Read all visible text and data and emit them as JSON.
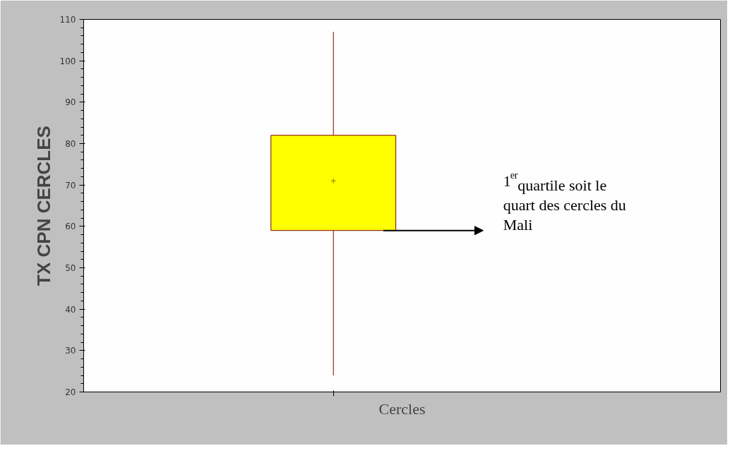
{
  "chart_data": {
    "type": "box",
    "categories": [
      null
    ],
    "xlabel": "Cercles",
    "ylabel": "TX CPN CERCLES",
    "series": [
      {
        "color": "#ffff00",
        "boxes": [
          {
            "low": 24,
            "q1": 59,
            "q3": 82,
            "high": 107,
            "mean": 71
          }
        ]
      }
    ],
    "ylim": [
      20,
      110
    ],
    "yticks": [
      20,
      30,
      40,
      50,
      60,
      70,
      80,
      90,
      100,
      110
    ],
    "grid": false,
    "annotations": [
      "1$^{er}$ quartile soit le quart des cercles du Mali"
    ]
  }
}
